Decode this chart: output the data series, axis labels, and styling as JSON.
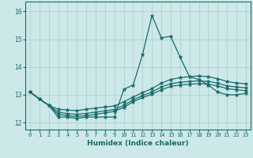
{
  "title": "",
  "xlabel": "Humidex (Indice chaleur)",
  "ylabel": "",
  "bg_color": "#cde8e8",
  "grid_color": "#aecfcf",
  "line_color": "#1a6b6b",
  "xlim": [
    -0.5,
    23.5
  ],
  "ylim": [
    11.75,
    16.35
  ],
  "yticks": [
    12,
    13,
    14,
    15,
    16
  ],
  "xticks": [
    0,
    1,
    2,
    3,
    4,
    5,
    6,
    7,
    8,
    9,
    10,
    11,
    12,
    13,
    14,
    15,
    16,
    17,
    18,
    19,
    20,
    21,
    22,
    23
  ],
  "series": [
    [
      13.1,
      12.85,
      12.62,
      12.2,
      12.2,
      12.15,
      12.2,
      12.2,
      12.2,
      12.2,
      13.2,
      13.35,
      14.45,
      15.85,
      15.05,
      15.1,
      14.35,
      13.65,
      13.55,
      13.35,
      13.1,
      13.0,
      13.0,
      13.05
    ],
    [
      13.1,
      12.85,
      12.62,
      12.48,
      12.45,
      12.43,
      12.48,
      12.52,
      12.56,
      12.6,
      12.75,
      12.92,
      13.08,
      13.22,
      13.42,
      13.55,
      13.62,
      13.65,
      13.68,
      13.65,
      13.58,
      13.48,
      13.42,
      13.4
    ],
    [
      13.1,
      12.85,
      12.62,
      12.38,
      12.32,
      12.3,
      12.33,
      12.38,
      12.42,
      12.47,
      12.62,
      12.82,
      12.97,
      13.1,
      13.28,
      13.4,
      13.45,
      13.48,
      13.5,
      13.48,
      13.42,
      13.32,
      13.28,
      13.25
    ],
    [
      13.1,
      12.85,
      12.62,
      12.3,
      12.25,
      12.22,
      12.25,
      12.3,
      12.35,
      12.4,
      12.55,
      12.75,
      12.9,
      13.02,
      13.18,
      13.3,
      13.35,
      13.38,
      13.4,
      13.38,
      13.32,
      13.22,
      13.18,
      13.15
    ]
  ]
}
